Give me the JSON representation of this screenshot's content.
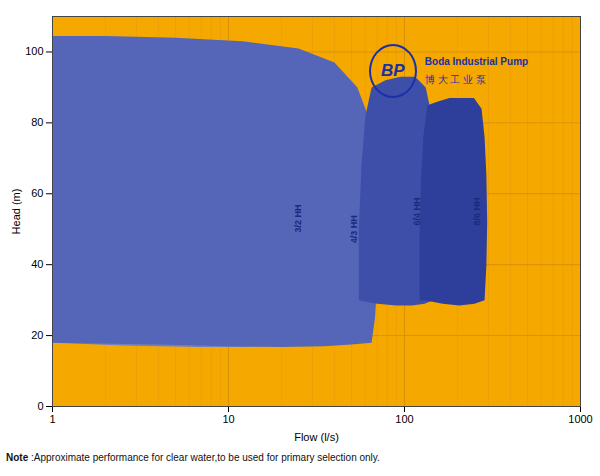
{
  "chart_data": {
    "type": "polygon",
    "log": "x",
    "grid": true,
    "color": "#F5A800",
    "xlabel": "Flow (l/s)",
    "ylabel": "Head (m)",
    "xlim": [
      1,
      1000
    ],
    "ylim": [
      0,
      110
    ],
    "xticks": [
      1,
      10,
      100,
      1000
    ],
    "yticks": [
      0,
      20,
      40,
      60,
      80,
      100
    ],
    "series": [
      {
        "name": "3/2 HH",
        "color": "#7080C0",
        "label_x": 25,
        "label_y": 53,
        "x": [
          1.0,
          1.3,
          1.8,
          2.5,
          4,
          7,
          12,
          20,
          30,
          40,
          40,
          42,
          43,
          44,
          44,
          43,
          41,
          41,
          36,
          28,
          18,
          10,
          5,
          2,
          1.3,
          1.0,
          1.0,
          1.0
        ],
        "values": [
          18,
          17.8,
          17.5,
          17.2,
          17,
          16.8,
          16.8,
          17,
          17.5,
          18,
          18,
          22,
          30,
          42,
          55,
          65,
          74,
          74,
          82,
          90,
          96,
          100,
          102,
          103,
          103.5,
          103.5,
          103.5,
          18
        ]
      },
      {
        "name": "4/3 HH",
        "color": "#5566B8",
        "label_x": 52,
        "label_y": 50,
        "x": [
          1.0,
          4,
          10,
          20,
          35,
          50,
          65,
          65,
          68,
          70,
          70,
          69,
          66,
          61,
          54,
          54,
          40,
          25,
          12,
          5,
          2,
          1.3,
          1.0,
          1.0,
          1.0
        ],
        "values": [
          18,
          17.5,
          17,
          16.8,
          17,
          17.5,
          18,
          18,
          25,
          35,
          50,
          62,
          74,
          83,
          90,
          90,
          97,
          101,
          103,
          104,
          104.5,
          104.5,
          104.5,
          104.5,
          18
        ]
      },
      {
        "name": "6/4 HH",
        "color": "#3d4fa8",
        "label_x": 118,
        "label_y": 55,
        "x": [
          55,
          70,
          90,
          110,
          130,
          145,
          145,
          148,
          150,
          149,
          146,
          140,
          132,
          132,
          115,
          95,
          78,
          65,
          65,
          60,
          57,
          55,
          55
        ],
        "values": [
          30,
          29,
          28.5,
          28.5,
          29,
          30,
          30,
          38,
          50,
          63,
          75,
          84,
          90,
          90,
          93,
          93,
          92,
          90,
          90,
          82,
          68,
          50,
          30
        ]
      },
      {
        "name": "8/6 HH",
        "color": "#2d3f9a",
        "label_x": 258,
        "label_y": 55,
        "x": [
          130,
          165,
          205,
          250,
          285,
          285,
          292,
          295,
          292,
          285,
          274,
          274,
          248,
          215,
          180,
          155,
          135,
          135,
          128,
          124,
          122,
          122,
          122,
          130
        ],
        "values": [
          30,
          29,
          28.5,
          29,
          30,
          30,
          40,
          52,
          65,
          76,
          84,
          84,
          87,
          87,
          87,
          86,
          85,
          85,
          76,
          63,
          50,
          38,
          30,
          30
        ]
      }
    ],
    "annotations": [
      {
        "text": "BP"
      },
      {
        "text": "Boda Industrial Pump"
      },
      {
        "text": "博 大 工 业 泵"
      }
    ],
    "note": [
      "Note",
      ":Approximate performance for clear water,to be used for primary selection only."
    ]
  }
}
